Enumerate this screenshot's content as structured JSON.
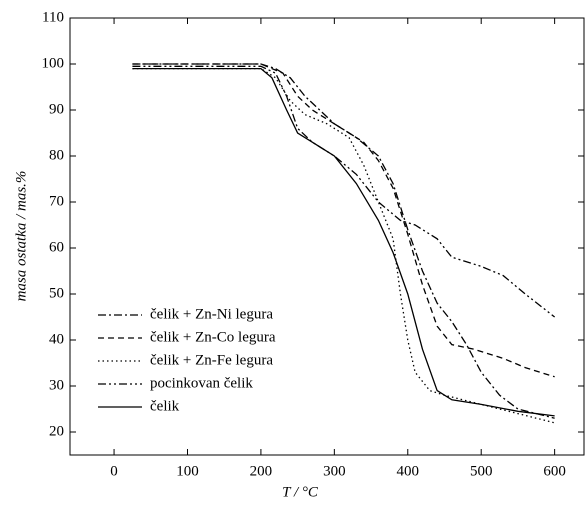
{
  "chart_data": {
    "type": "line",
    "xlabel": "T / °C",
    "ylabel": "masa ostatka / mas.%",
    "xlim": [
      -60,
      640
    ],
    "xticks": [
      0,
      100,
      200,
      300,
      400,
      500,
      600
    ],
    "ylim": [
      15,
      110
    ],
    "yticks": [
      20,
      30,
      40,
      50,
      60,
      70,
      80,
      90,
      100,
      110
    ],
    "legend": "lower left",
    "series": [
      {
        "name": "čelik + Zn-Ni legura",
        "color": "#000000",
        "dash": "8,3,2,3",
        "x": [
          25,
          200,
          220,
          240,
          260,
          280,
          300,
          330,
          360,
          380,
          400,
          420,
          440,
          460,
          480,
          500,
          525,
          550,
          600
        ],
        "values": [
          100,
          100,
          99,
          97,
          93,
          90,
          87,
          84,
          80,
          74,
          64,
          55,
          48,
          44,
          39,
          33,
          28,
          25,
          23
        ]
      },
      {
        "name": "čelik + Zn-Co legura",
        "color": "#000000",
        "dash": "6,4",
        "x": [
          25,
          200,
          230,
          250,
          270,
          290,
          310,
          340,
          360,
          380,
          400,
          420,
          440,
          460,
          490,
          530,
          560,
          600
        ],
        "values": [
          100,
          100,
          98,
          93,
          90,
          88,
          86,
          83,
          79,
          73,
          63,
          52,
          43,
          39,
          38,
          36,
          34,
          32
        ]
      },
      {
        "name": "čelik + Zn-Fe legura",
        "color": "#000000",
        "dash": "1.5,3",
        "x": [
          25,
          200,
          220,
          240,
          260,
          290,
          320,
          340,
          360,
          380,
          390,
          400,
          410,
          430,
          450,
          500,
          550,
          600
        ],
        "values": [
          99,
          99,
          97,
          92,
          89,
          87,
          84,
          78,
          70,
          62,
          50,
          40,
          33,
          29,
          28,
          26,
          24,
          22
        ]
      },
      {
        "name": "pocinkovan čelik",
        "color": "#000000",
        "dash": "8,3,2,3,2,3",
        "x": [
          25,
          200,
          220,
          235,
          250,
          270,
          300,
          330,
          360,
          390,
          410,
          440,
          460,
          500,
          530,
          560,
          600
        ],
        "values": [
          99.5,
          99.5,
          98,
          93,
          86,
          83,
          80,
          76,
          70,
          66,
          65,
          62,
          58,
          56,
          54,
          50,
          45
        ]
      },
      {
        "name": "čelik",
        "color": "#000000",
        "dash": "",
        "x": [
          25,
          200,
          215,
          235,
          250,
          270,
          300,
          330,
          360,
          380,
          400,
          420,
          440,
          460,
          500,
          550,
          600
        ],
        "values": [
          99,
          99,
          97,
          90,
          85,
          83,
          80,
          74,
          66,
          59,
          50,
          38,
          29,
          27,
          26,
          24.5,
          23.5
        ]
      }
    ]
  }
}
